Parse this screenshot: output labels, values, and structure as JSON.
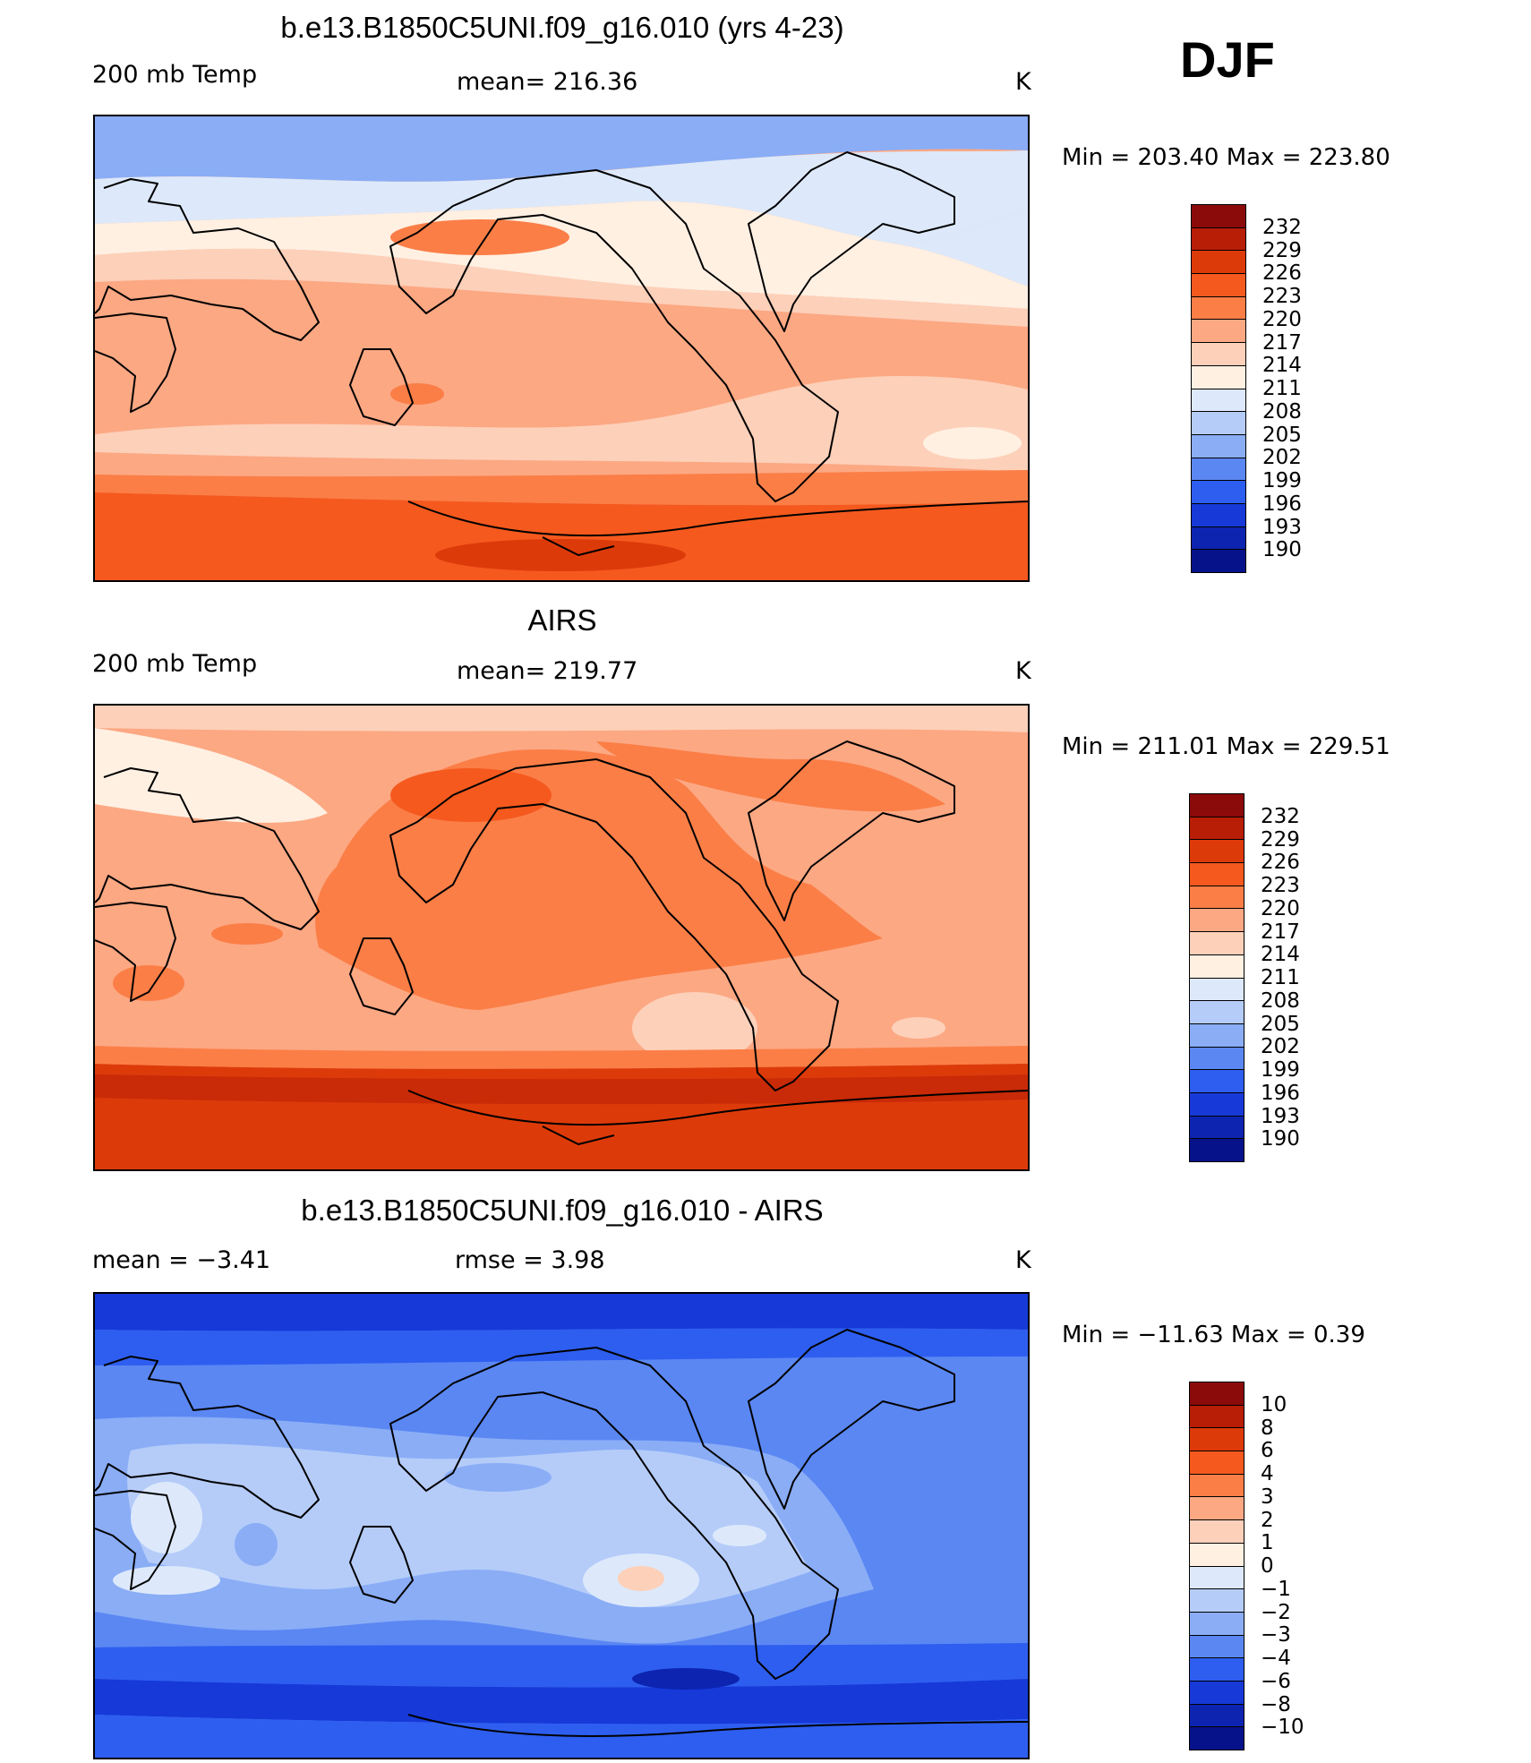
{
  "season": "DJF",
  "panels": [
    {
      "title": "b.e13.B1850C5UNI.f09_g16.010 (yrs 4-23)",
      "left_label": "200 mb Temp",
      "mid_label": "mean=  216.36",
      "unit": "K",
      "minmax": "Min  =  203.40  Max  =  223.80",
      "scheme": "model",
      "colorbar_labels": [
        "232",
        "229",
        "226",
        "223",
        "220",
        "217",
        "214",
        "211",
        "208",
        "205",
        "202",
        "199",
        "196",
        "193",
        "190"
      ]
    },
    {
      "title": "AIRS",
      "left_label": "200 mb Temp",
      "mid_label": "mean=  219.77",
      "unit": "K",
      "minmax": "Min  =  211.01  Max  =  229.51",
      "scheme": "obs",
      "colorbar_labels": [
        "232",
        "229",
        "226",
        "223",
        "220",
        "217",
        "214",
        "211",
        "208",
        "205",
        "202",
        "199",
        "196",
        "193",
        "190"
      ]
    },
    {
      "title": "b.e13.B1850C5UNI.f09_g16.010 - AIRS",
      "left_label": "mean  =     −3.41",
      "mid_label": "rmse  =      3.98",
      "unit": "K",
      "minmax": "Min  =  −11.63  Max  =      0.39",
      "scheme": "diff",
      "colorbar_labels": [
        "10",
        "8",
        "6",
        "4",
        "3",
        "2",
        "1",
        "0",
        "−1",
        "−2",
        "−3",
        "−4",
        "−6",
        "−8",
        "−10"
      ]
    }
  ],
  "colorbar_colors": [
    "#8b0a0a",
    "#b81d06",
    "#dd3a0a",
    "#f5591e",
    "#fb7e47",
    "#fca883",
    "#fdd0b9",
    "#fff0e2",
    "#dde9fb",
    "#b5ccf9",
    "#8aadf6",
    "#5b87f3",
    "#2e5ef0",
    "#1639d8",
    "#0c24b0",
    "#06128a"
  ]
}
